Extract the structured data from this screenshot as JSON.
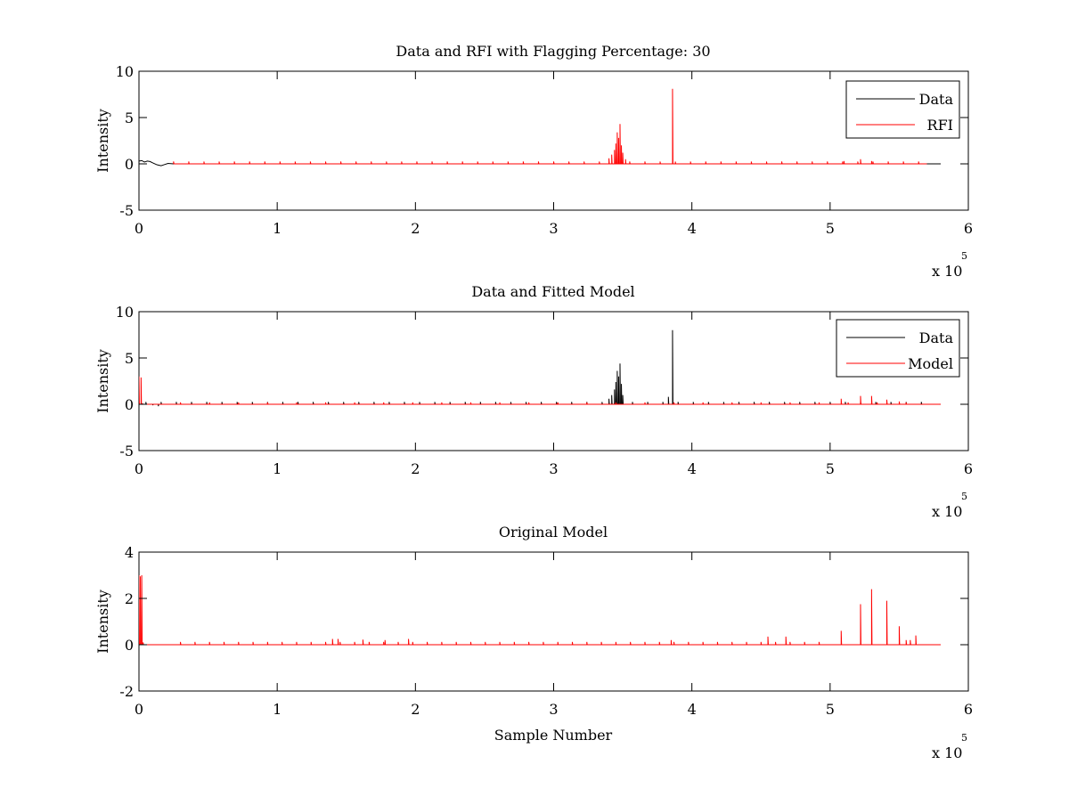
{
  "colors": {
    "data": "#000000",
    "red": "#ff0000",
    "axes": "#000000",
    "background": "#ffffff"
  },
  "chart_data": [
    {
      "type": "line",
      "title": "Data and RFI with Flagging Percentage: 30",
      "xlabel": "",
      "ylabel": "Intensity",
      "xlim": [
        0,
        600000
      ],
      "ylim": [
        -5,
        10
      ],
      "xticks": [
        0,
        1,
        2,
        3,
        4,
        5,
        6
      ],
      "yticks": [
        -5,
        0,
        5,
        10
      ],
      "x_multiplier_base": "x 10",
      "x_multiplier_exp": "5",
      "legend": {
        "position": "top-right",
        "entries": [
          "Data",
          "RFI"
        ]
      },
      "series": [
        {
          "name": "Data",
          "color": "#000000",
          "baseline": 0.0,
          "points": [
            [
              0,
              0.3
            ],
            [
              2000,
              0.35
            ],
            [
              4000,
              0.2
            ],
            [
              6000,
              0.3
            ],
            [
              8000,
              0.25
            ],
            [
              10000,
              0.1
            ],
            [
              13000,
              -0.1
            ],
            [
              16000,
              -0.2
            ],
            [
              18000,
              -0.1
            ],
            [
              21000,
              0.05
            ],
            [
              25000,
              0.0
            ],
            [
              580000,
              0.0
            ]
          ]
        },
        {
          "name": "RFI",
          "color": "#ff0000",
          "baseline": 0.0,
          "x_start": 25000,
          "x_end": 570000,
          "comb": {
            "start": 25000,
            "end": 570000,
            "step": 11000,
            "height": 0.25
          },
          "spikes": [
            [
              340000,
              0.6
            ],
            [
              342000,
              1.0
            ],
            [
              344000,
              1.5
            ],
            [
              345000,
              2.2
            ],
            [
              346000,
              3.4
            ],
            [
              347000,
              2.8
            ],
            [
              348000,
              4.3
            ],
            [
              349000,
              2.0
            ],
            [
              350000,
              1.2
            ],
            [
              352000,
              0.5
            ],
            [
              386000,
              8.1
            ],
            [
              510000,
              0.3
            ],
            [
              522000,
              0.5
            ],
            [
              530000,
              0.3
            ]
          ]
        }
      ]
    },
    {
      "type": "line",
      "title": "Data and Fitted Model",
      "xlabel": "",
      "ylabel": "Intensity",
      "xlim": [
        0,
        600000
      ],
      "ylim": [
        -5,
        10
      ],
      "xticks": [
        0,
        1,
        2,
        3,
        4,
        5,
        6
      ],
      "yticks": [
        -5,
        0,
        5,
        10
      ],
      "x_multiplier_base": "x 10",
      "x_multiplier_exp": "5",
      "legend": {
        "position": "top-right",
        "entries": [
          "Data",
          "Model"
        ]
      },
      "series": [
        {
          "name": "Data",
          "color": "#000000",
          "baseline": 0.0,
          "x_start": 0,
          "x_end": 580000,
          "comb": {
            "start": 5000,
            "end": 575000,
            "step": 11000,
            "height": 0.25
          },
          "spikes": [
            [
              5000,
              0.2
            ],
            [
              10000,
              -0.1
            ],
            [
              14000,
              -0.2
            ],
            [
              340000,
              0.6
            ],
            [
              342000,
              1.0
            ],
            [
              344000,
              1.6
            ],
            [
              345000,
              2.4
            ],
            [
              346000,
              3.6
            ],
            [
              347000,
              3.0
            ],
            [
              348000,
              4.4
            ],
            [
              349000,
              2.2
            ],
            [
              350000,
              1.0
            ],
            [
              386000,
              8.0
            ],
            [
              383000,
              0.8
            ]
          ]
        },
        {
          "name": "Model",
          "color": "#ff0000",
          "baseline": 0.0,
          "x_start": 0,
          "x_end": 580000,
          "comb": {
            "start": 30000,
            "end": 570000,
            "step": 21000,
            "height": 0.2
          },
          "spikes": [
            [
              0,
              3.0
            ],
            [
              1500,
              2.9
            ],
            [
              2500,
              0.1
            ],
            [
              508000,
              0.6
            ],
            [
              522000,
              0.9
            ],
            [
              530000,
              0.9
            ],
            [
              541000,
              0.5
            ],
            [
              550000,
              0.3
            ]
          ]
        }
      ]
    },
    {
      "type": "line",
      "title": "Original Model",
      "xlabel": "Sample Number",
      "ylabel": "Intensity",
      "xlim": [
        0,
        600000
      ],
      "ylim": [
        -2,
        4
      ],
      "xticks": [
        0,
        1,
        2,
        3,
        4,
        5,
        6
      ],
      "yticks": [
        -2,
        0,
        2,
        4
      ],
      "x_multiplier_base": "x 10",
      "x_multiplier_exp": "5",
      "legend": null,
      "series": [
        {
          "name": "",
          "color": "#ff0000",
          "baseline": 0.0,
          "x_start": 0,
          "x_end": 580000,
          "comb": {
            "start": 30000,
            "end": 500000,
            "step": 10500,
            "height": 0.12
          },
          "spikes": [
            [
              0,
              3.0
            ],
            [
              1000,
              2.95
            ],
            [
              2000,
              3.0
            ],
            [
              3000,
              0.1
            ],
            [
              140000,
              0.25
            ],
            [
              144000,
              0.25
            ],
            [
              162000,
              0.22
            ],
            [
              178000,
              0.2
            ],
            [
              195000,
              0.25
            ],
            [
              385000,
              0.2
            ],
            [
              455000,
              0.35
            ],
            [
              468000,
              0.35
            ],
            [
              508000,
              0.6
            ],
            [
              522000,
              1.75
            ],
            [
              530000,
              2.4
            ],
            [
              541000,
              1.9
            ],
            [
              550000,
              0.8
            ],
            [
              555000,
              0.2
            ],
            [
              558000,
              0.2
            ],
            [
              562000,
              0.4
            ]
          ]
        }
      ]
    }
  ]
}
